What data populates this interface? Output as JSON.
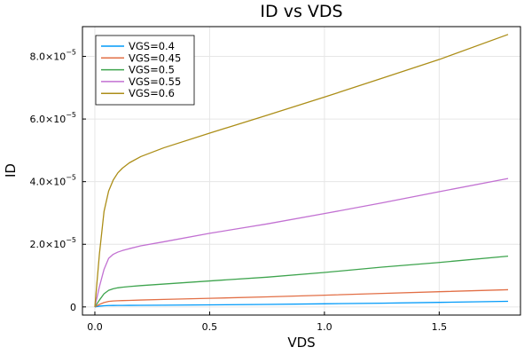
{
  "chart_data": {
    "type": "line",
    "title": "ID vs VDS",
    "xlabel": "VDS",
    "ylabel": "ID",
    "xlim": [
      -0.054,
      1.854
    ],
    "ylim": [
      -2.6e-06,
      8.95e-05
    ],
    "grid": true,
    "legend_position": "top-left",
    "x_ticks": [
      {
        "value": 0.0,
        "label": "0.0"
      },
      {
        "value": 0.5,
        "label": "0.5"
      },
      {
        "value": 1.0,
        "label": "1.0"
      },
      {
        "value": 1.5,
        "label": "1.5"
      }
    ],
    "y_ticks": [
      {
        "value": 0,
        "mantissa": "0",
        "exp": ""
      },
      {
        "value": 2e-05,
        "mantissa": "2.0×10",
        "exp": "−5"
      },
      {
        "value": 4e-05,
        "mantissa": "4.0×10",
        "exp": "−5"
      },
      {
        "value": 6e-05,
        "mantissa": "6.0×10",
        "exp": "−5"
      },
      {
        "value": 8e-05,
        "mantissa": "8.0×10",
        "exp": "−5"
      }
    ],
    "x": [
      0,
      0.02,
      0.04,
      0.06,
      0.08,
      0.1,
      0.12,
      0.15,
      0.2,
      0.3,
      0.5,
      0.75,
      1.0,
      1.25,
      1.5,
      1.8
    ],
    "series": [
      {
        "name": "VGS=0.4",
        "color": "#009af9",
        "values": [
          0,
          2.5e-07,
          3.8e-07,
          4.4e-07,
          4.7e-07,
          4.8e-07,
          4.9e-07,
          5e-07,
          5.2e-07,
          5.6e-07,
          6.5e-07,
          8e-07,
          1e-06,
          1.2e-06,
          1.45e-06,
          1.8e-06
        ]
      },
      {
        "name": "VGS=0.45",
        "color": "#e26f46",
        "values": [
          0,
          8e-07,
          1.4e-06,
          1.75e-06,
          1.9e-06,
          1.97e-06,
          2.02e-06,
          2.08e-06,
          2.2e-06,
          2.4e-06,
          2.75e-06,
          3.2e-06,
          3.75e-06,
          4.3e-06,
          4.85e-06,
          5.5e-06
        ]
      },
      {
        "name": "VGS=0.5",
        "color": "#3ea44e",
        "values": [
          0,
          2.2e-06,
          4.2e-06,
          5.3e-06,
          5.8e-06,
          6.1e-06,
          6.3e-06,
          6.5e-06,
          6.8e-06,
          7.3e-06,
          8.3e-06,
          9.5e-06,
          1.1e-05,
          1.27e-05,
          1.42e-05,
          1.62e-05
        ]
      },
      {
        "name": "VGS=0.55",
        "color": "#c271d2",
        "values": [
          0,
          6.5e-06,
          1.2e-05,
          1.55e-05,
          1.68e-05,
          1.75e-05,
          1.8e-05,
          1.86e-05,
          1.95e-05,
          2.08e-05,
          2.35e-05,
          2.65e-05,
          2.98e-05,
          3.32e-05,
          3.68e-05,
          4.1e-05
        ]
      },
      {
        "name": "VGS=0.6",
        "color": "#ac8e18",
        "values": [
          0,
          1.7e-05,
          3.05e-05,
          3.7e-05,
          4.05e-05,
          4.28e-05,
          4.43e-05,
          4.6e-05,
          4.8e-05,
          5.08e-05,
          5.55e-05,
          6.12e-05,
          6.7e-05,
          7.3e-05,
          7.9e-05,
          8.7e-05
        ]
      }
    ]
  }
}
